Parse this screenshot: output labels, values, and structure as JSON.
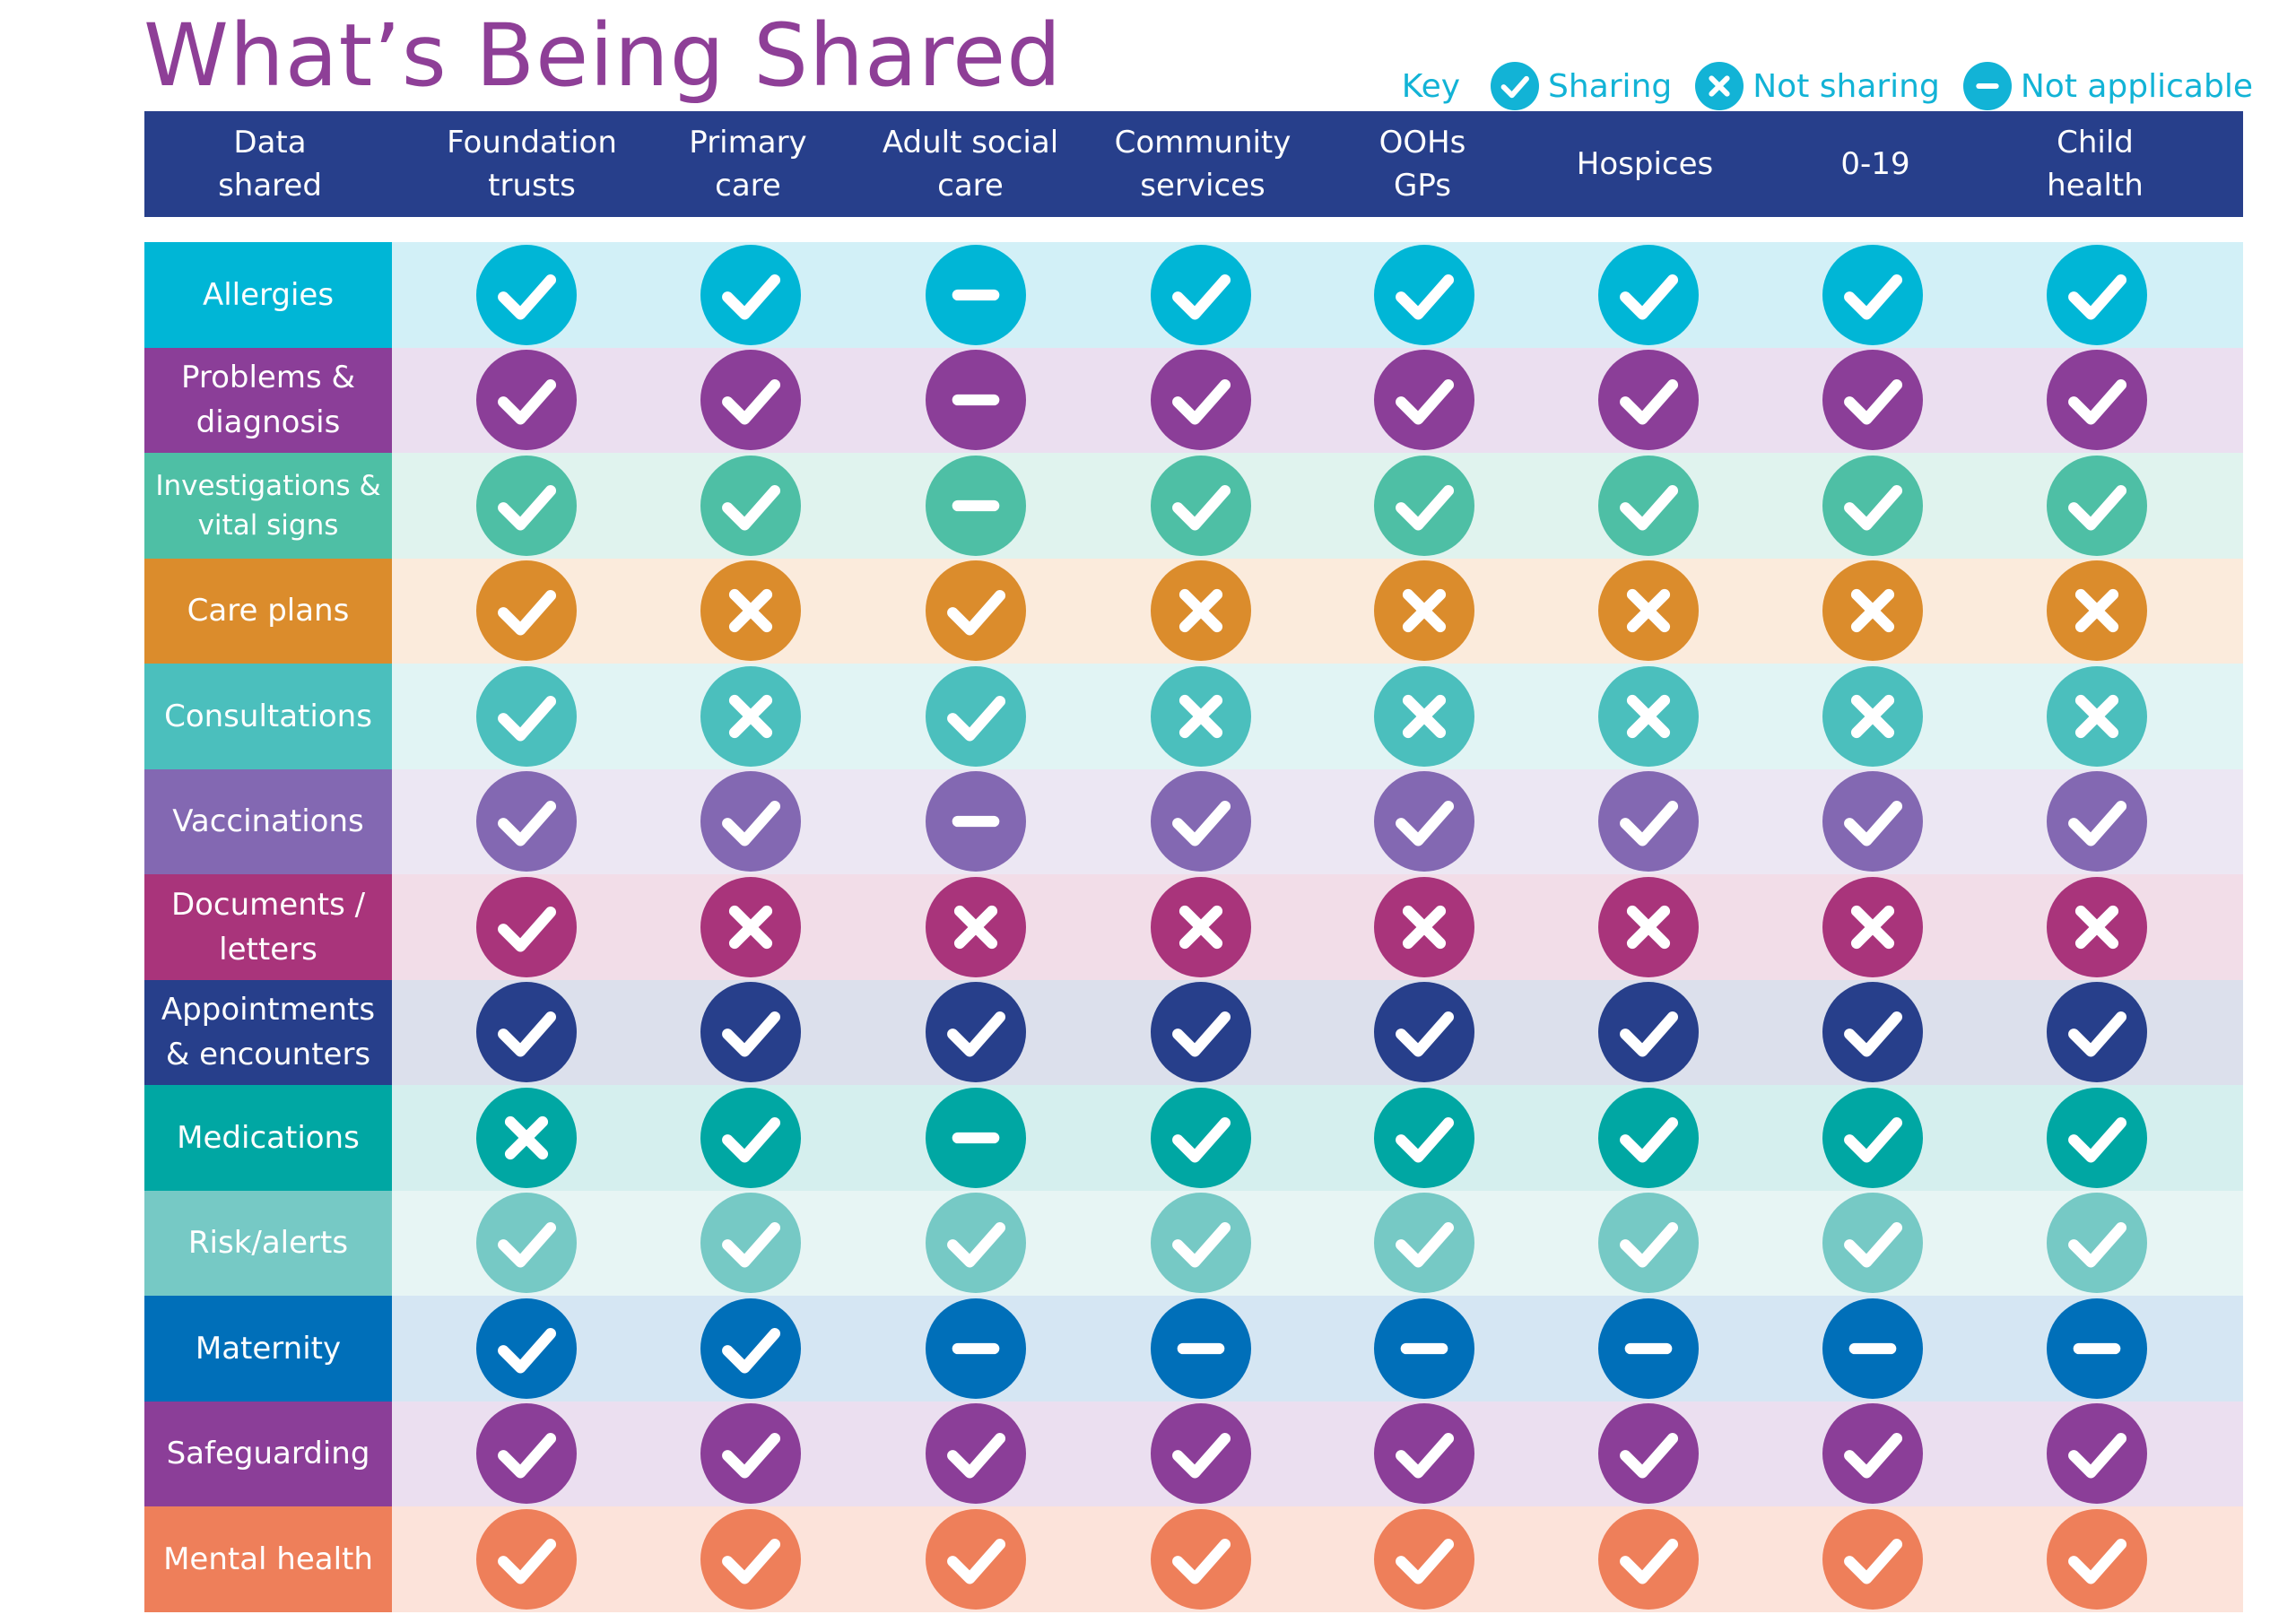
{
  "title": "What’s Being Shared",
  "key": {
    "label": "Key",
    "color": "#12b3d6",
    "items": [
      {
        "status": "sharing",
        "icon": "check-icon",
        "label": "Sharing"
      },
      {
        "status": "not_sharing",
        "icon": "cross-icon",
        "label": "Not sharing"
      },
      {
        "status": "not_applicable",
        "icon": "minus-icon",
        "label": "Not applicable"
      }
    ]
  },
  "header": {
    "background": "#273f8b",
    "first_column": "Data\nshared",
    "columns": [
      "Foundation\ntrusts",
      "Primary\ncare",
      "Adult social\ncare",
      "Community\nservices",
      "OOHs\nGPs",
      "Hospices",
      "0-19",
      "Child\nhealth"
    ]
  },
  "rows": [
    {
      "label": "Allergies",
      "color": "#00b6d6",
      "bg": "#d2f0f7",
      "values": [
        "sharing",
        "sharing",
        "not_applicable",
        "sharing",
        "sharing",
        "sharing",
        "sharing",
        "sharing"
      ]
    },
    {
      "label": "Problems &\ndiagnosis",
      "color": "#8b3e98",
      "bg": "#ebdff0",
      "values": [
        "sharing",
        "sharing",
        "not_applicable",
        "sharing",
        "sharing",
        "sharing",
        "sharing",
        "sharing"
      ]
    },
    {
      "label": "Investigations &\nvital signs",
      "color": "#4ebfa5",
      "bg": "#e0f3ee",
      "small": true,
      "values": [
        "sharing",
        "sharing",
        "not_applicable",
        "sharing",
        "sharing",
        "sharing",
        "sharing",
        "sharing"
      ]
    },
    {
      "label": "Care plans",
      "color": "#db8c2c",
      "bg": "#fbebdc",
      "values": [
        "sharing",
        "not_sharing",
        "sharing",
        "not_sharing",
        "not_sharing",
        "not_sharing",
        "not_sharing",
        "not_sharing"
      ]
    },
    {
      "label": "Consultations",
      "color": "#4bbfbd",
      "bg": "#e1f4f4",
      "values": [
        "sharing",
        "not_sharing",
        "sharing",
        "not_sharing",
        "not_sharing",
        "not_sharing",
        "not_sharing",
        "not_sharing"
      ]
    },
    {
      "label": "Vaccinations",
      "color": "#8368b2",
      "bg": "#ece7f3",
      "values": [
        "sharing",
        "sharing",
        "not_applicable",
        "sharing",
        "sharing",
        "sharing",
        "sharing",
        "sharing"
      ]
    },
    {
      "label": "Documents /\nletters",
      "color": "#a9347b",
      "bg": "#f2dde8",
      "values": [
        "sharing",
        "not_sharing",
        "not_sharing",
        "not_sharing",
        "not_sharing",
        "not_sharing",
        "not_sharing",
        "not_sharing"
      ]
    },
    {
      "label": "Appointments\n& encounters",
      "color": "#273f8b",
      "bg": "#dce0ec",
      "values": [
        "sharing",
        "sharing",
        "sharing",
        "sharing",
        "sharing",
        "sharing",
        "sharing",
        "sharing"
      ]
    },
    {
      "label": "Medications",
      "color": "#00a7a3",
      "bg": "#d5efee",
      "values": [
        "not_sharing",
        "sharing",
        "not_applicable",
        "sharing",
        "sharing",
        "sharing",
        "sharing",
        "sharing"
      ]
    },
    {
      "label": "Risk/alerts",
      "color": "#76c9c5",
      "bg": "#e7f5f4",
      "values": [
        "sharing",
        "sharing",
        "sharing",
        "sharing",
        "sharing",
        "sharing",
        "sharing",
        "sharing"
      ]
    },
    {
      "label": "Maternity",
      "color": "#006fb9",
      "bg": "#d5e6f3",
      "values": [
        "sharing",
        "sharing",
        "not_applicable",
        "not_applicable",
        "not_applicable",
        "not_applicable",
        "not_applicable",
        "not_applicable"
      ]
    },
    {
      "label": "Safeguarding",
      "color": "#8b3e98",
      "bg": "#ebdff0",
      "values": [
        "sharing",
        "sharing",
        "sharing",
        "sharing",
        "sharing",
        "sharing",
        "sharing",
        "sharing"
      ]
    },
    {
      "label": "Mental health",
      "color": "#ee7f5a",
      "bg": "#fce3da",
      "values": [
        "sharing",
        "sharing",
        "sharing",
        "sharing",
        "sharing",
        "sharing",
        "sharing",
        "sharing"
      ]
    }
  ]
}
